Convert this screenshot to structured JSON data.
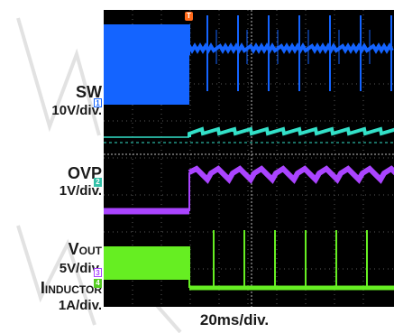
{
  "chart_data": {
    "type": "line",
    "title": "",
    "xlabel": "20ms/div.",
    "time_per_div_ms": 20,
    "divisions_x": 10,
    "trigger_label": "T",
    "trigger_time_ms": 0,
    "x_range_ms": [
      -30,
      80
    ],
    "grid": true,
    "series": [
      {
        "name": "SW",
        "scale": "10V/div.",
        "marker": "1",
        "color": "#1464ff",
        "before_trigger": "continuous switching, ~0 V to ~30 V",
        "after_trigger": "burst switching, ~18 V level with spikes every ~7 ms"
      },
      {
        "name": "OVP",
        "scale": "1V/div.",
        "marker": "2",
        "color": "#33e0c8",
        "before_trigger_v": 0.1,
        "after_trigger_v": [
          0.65,
          0.95
        ]
      },
      {
        "name": "VOUT",
        "scale": "5V/div.",
        "marker": "3",
        "color": "#aa44ff",
        "before_trigger_v": 1.3,
        "after_trigger_v": [
          14,
          18.5
        ]
      },
      {
        "name": "IINDUCTOR",
        "scale": "1A/div.",
        "marker": "4",
        "color": "#66ee22",
        "before_trigger_a": "0 to ~1 A ripple",
        "after_trigger_a": "~0 A with brief spikes every ~7 ms"
      }
    ]
  },
  "labels": {
    "sw": "SW",
    "sw_scale": "10V/div.",
    "ovp": "OVP",
    "ovp_scale": "1V/div.",
    "vout_main": "V",
    "vout_sub": "OUT",
    "vout_scale": "5V/div.",
    "iind_main": "I",
    "iind_sub": "INDUCTOR",
    "iind_scale": "1A/div.",
    "time_scale": "20ms/div.",
    "trigger": "T",
    "m1": "1",
    "m2": "2",
    "m3": "3",
    "m4": "4"
  }
}
